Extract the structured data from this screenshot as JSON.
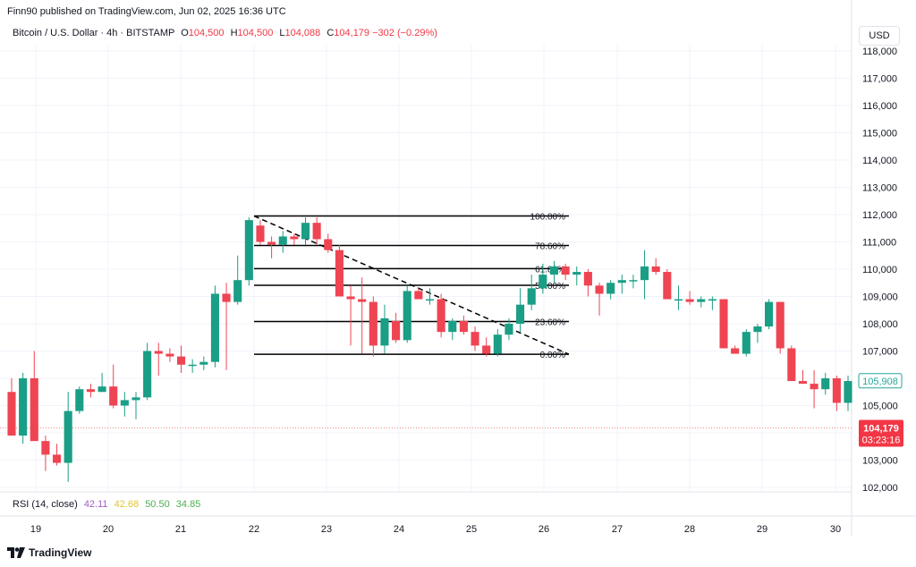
{
  "header": {
    "publisher": "Finn90 published on TradingView.com, Jun 02, 2025 16:36 UTC"
  },
  "legend": {
    "symbol": "Bitcoin / U.S. Dollar · 4h · BITSTAMP",
    "o_label": "O",
    "o_value": "104,500",
    "h_label": "H",
    "h_value": "104,500",
    "l_label": "L",
    "l_value": "104,088",
    "c_label": "C",
    "c_value": "104,179",
    "change": "−302 (−0.29%)"
  },
  "currency_button": "USD",
  "rsi_legend": {
    "label": "RSI (14, close)",
    "v1": "42.11",
    "v2": "42.68",
    "v3": "50.50",
    "v4": "34.85"
  },
  "footer": {
    "logo_text": "TradingView"
  },
  "colors": {
    "up": "#26a69a",
    "down": "#f23645",
    "up_body": "#1a9e85",
    "down_body": "#ef4452",
    "text": "#131722"
  },
  "chart_data": {
    "type": "candlestick",
    "y_axis": {
      "ticks": [
        118000,
        117000,
        116000,
        115000,
        114000,
        113000,
        112000,
        111000,
        110000,
        109000,
        108000,
        107000,
        106000,
        105000,
        104000,
        103000,
        102000
      ],
      "tick_labels": [
        "118,000",
        "117,000",
        "116,000",
        "115,000",
        "114,000",
        "113,000",
        "112,000",
        "111,000",
        "110,000",
        "109,000",
        "108,000",
        "107,000",
        "106,000",
        "105,000",
        "104,000",
        "103,000",
        "102,000"
      ],
      "range": [
        101700,
        118600
      ]
    },
    "x_axis": {
      "labels": [
        "19",
        "20",
        "21",
        "22",
        "23",
        "24",
        "25",
        "26",
        "27",
        "28",
        "29",
        "30"
      ]
    },
    "price_labels": {
      "current_value": 105908,
      "current_text": "105,908",
      "last_value": 104179,
      "last_text": "104,179",
      "countdown": "03:23:16"
    },
    "fibonacci": {
      "levels": [
        {
          "label": "100.00%",
          "price": 111950
        },
        {
          "label": "78.60%",
          "price": 110870
        },
        {
          "label": "61.80%",
          "price": 110020
        },
        {
          "label": "50.00%",
          "price": 109410
        },
        {
          "label": "23.60%",
          "price": 108080
        },
        {
          "label": "0.00%",
          "price": 106880
        }
      ],
      "trend_start_price": 111950,
      "trend_end_price": 106880
    },
    "candles": [
      {
        "o": 105500,
        "h": 106000,
        "l": 103900,
        "c": 103900
      },
      {
        "o": 103900,
        "h": 106200,
        "l": 103600,
        "c": 106000
      },
      {
        "o": 106000,
        "h": 107000,
        "l": 103800,
        "c": 103700
      },
      {
        "o": 103700,
        "h": 103900,
        "l": 102600,
        "c": 103200
      },
      {
        "o": 103200,
        "h": 103600,
        "l": 102800,
        "c": 102900
      },
      {
        "o": 102900,
        "h": 105500,
        "l": 102200,
        "c": 104800
      },
      {
        "o": 104800,
        "h": 105700,
        "l": 104700,
        "c": 105600
      },
      {
        "o": 105600,
        "h": 105800,
        "l": 105300,
        "c": 105500
      },
      {
        "o": 105500,
        "h": 106200,
        "l": 105500,
        "c": 105700
      },
      {
        "o": 105700,
        "h": 106500,
        "l": 104900,
        "c": 105000
      },
      {
        "o": 105000,
        "h": 105500,
        "l": 104600,
        "c": 105200
      },
      {
        "o": 105200,
        "h": 105500,
        "l": 104500,
        "c": 105300
      },
      {
        "o": 105300,
        "h": 107300,
        "l": 105200,
        "c": 107000
      },
      {
        "o": 107000,
        "h": 107300,
        "l": 106100,
        "c": 106900
      },
      {
        "o": 106900,
        "h": 107100,
        "l": 106600,
        "c": 106800
      },
      {
        "o": 106800,
        "h": 107200,
        "l": 106200,
        "c": 106500
      },
      {
        "o": 106500,
        "h": 106700,
        "l": 106200,
        "c": 106500
      },
      {
        "o": 106500,
        "h": 106800,
        "l": 106300,
        "c": 106600
      },
      {
        "o": 106600,
        "h": 109400,
        "l": 106400,
        "c": 109100
      },
      {
        "o": 109100,
        "h": 109500,
        "l": 106300,
        "c": 108800
      },
      {
        "o": 108800,
        "h": 110500,
        "l": 108700,
        "c": 109600
      },
      {
        "o": 109600,
        "h": 111900,
        "l": 109400,
        "c": 111800
      },
      {
        "o": 111600,
        "h": 111800,
        "l": 110900,
        "c": 111000
      },
      {
        "o": 111000,
        "h": 111200,
        "l": 110400,
        "c": 110900
      },
      {
        "o": 110900,
        "h": 111400,
        "l": 110600,
        "c": 111200
      },
      {
        "o": 111200,
        "h": 111300,
        "l": 110900,
        "c": 111100
      },
      {
        "o": 111100,
        "h": 111900,
        "l": 110900,
        "c": 111700
      },
      {
        "o": 111700,
        "h": 111900,
        "l": 110900,
        "c": 111100
      },
      {
        "o": 111100,
        "h": 111300,
        "l": 110600,
        "c": 110700
      },
      {
        "o": 110700,
        "h": 110900,
        "l": 109000,
        "c": 109000
      },
      {
        "o": 109000,
        "h": 109400,
        "l": 107200,
        "c": 108900
      },
      {
        "o": 108900,
        "h": 109700,
        "l": 106900,
        "c": 108800
      },
      {
        "o": 108800,
        "h": 109000,
        "l": 106800,
        "c": 107200
      },
      {
        "o": 107200,
        "h": 108700,
        "l": 106900,
        "c": 108200
      },
      {
        "o": 108100,
        "h": 108400,
        "l": 107300,
        "c": 107400
      },
      {
        "o": 107400,
        "h": 109400,
        "l": 107300,
        "c": 109200
      },
      {
        "o": 109200,
        "h": 109300,
        "l": 108900,
        "c": 108900
      },
      {
        "o": 108900,
        "h": 109300,
        "l": 108700,
        "c": 108900
      },
      {
        "o": 108900,
        "h": 109100,
        "l": 107500,
        "c": 107700
      },
      {
        "o": 107700,
        "h": 108200,
        "l": 107400,
        "c": 108100
      },
      {
        "o": 108100,
        "h": 108300,
        "l": 107600,
        "c": 107700
      },
      {
        "o": 107700,
        "h": 107900,
        "l": 107000,
        "c": 107200
      },
      {
        "o": 107200,
        "h": 107500,
        "l": 106800,
        "c": 106900
      },
      {
        "o": 106900,
        "h": 107800,
        "l": 106800,
        "c": 107600
      },
      {
        "o": 107600,
        "h": 108200,
        "l": 107400,
        "c": 108000
      },
      {
        "o": 108000,
        "h": 109300,
        "l": 107700,
        "c": 108700
      },
      {
        "o": 108700,
        "h": 109800,
        "l": 108500,
        "c": 109300
      },
      {
        "o": 109300,
        "h": 110200,
        "l": 109100,
        "c": 109800
      },
      {
        "o": 109800,
        "h": 110300,
        "l": 109500,
        "c": 110100
      },
      {
        "o": 110100,
        "h": 110200,
        "l": 109600,
        "c": 109800
      },
      {
        "o": 109800,
        "h": 110100,
        "l": 109400,
        "c": 109900
      },
      {
        "o": 109900,
        "h": 110000,
        "l": 109000,
        "c": 109400
      },
      {
        "o": 109400,
        "h": 109500,
        "l": 108300,
        "c": 109100
      },
      {
        "o": 109100,
        "h": 109600,
        "l": 108900,
        "c": 109500
      },
      {
        "o": 109500,
        "h": 109800,
        "l": 109100,
        "c": 109600
      },
      {
        "o": 109600,
        "h": 109800,
        "l": 109300,
        "c": 109600
      },
      {
        "o": 109600,
        "h": 110700,
        "l": 108900,
        "c": 110100
      },
      {
        "o": 110100,
        "h": 110400,
        "l": 109800,
        "c": 109900
      },
      {
        "o": 109900,
        "h": 110000,
        "l": 108900,
        "c": 108900
      },
      {
        "o": 108900,
        "h": 109400,
        "l": 108500,
        "c": 108900
      },
      {
        "o": 108900,
        "h": 109200,
        "l": 108700,
        "c": 108800
      },
      {
        "o": 108800,
        "h": 109000,
        "l": 108600,
        "c": 108900
      },
      {
        "o": 108900,
        "h": 109000,
        "l": 108500,
        "c": 108900
      },
      {
        "o": 108900,
        "h": 108900,
        "l": 107100,
        "c": 107100
      },
      {
        "o": 107100,
        "h": 107200,
        "l": 106900,
        "c": 106900
      },
      {
        "o": 106900,
        "h": 107800,
        "l": 106800,
        "c": 107700
      },
      {
        "o": 107700,
        "h": 108000,
        "l": 107300,
        "c": 107900
      },
      {
        "o": 107900,
        "h": 108900,
        "l": 107800,
        "c": 108800
      },
      {
        "o": 108800,
        "h": 108800,
        "l": 106900,
        "c": 107100
      },
      {
        "o": 107100,
        "h": 107200,
        "l": 105900,
        "c": 105900
      },
      {
        "o": 105900,
        "h": 106300,
        "l": 105800,
        "c": 105800
      },
      {
        "o": 105800,
        "h": 106300,
        "l": 104900,
        "c": 105600
      },
      {
        "o": 105600,
        "h": 106200,
        "l": 105400,
        "c": 106000
      },
      {
        "o": 106000,
        "h": 106100,
        "l": 104800,
        "c": 105100
      },
      {
        "o": 105100,
        "h": 106100,
        "l": 104800,
        "c": 105900
      }
    ]
  }
}
